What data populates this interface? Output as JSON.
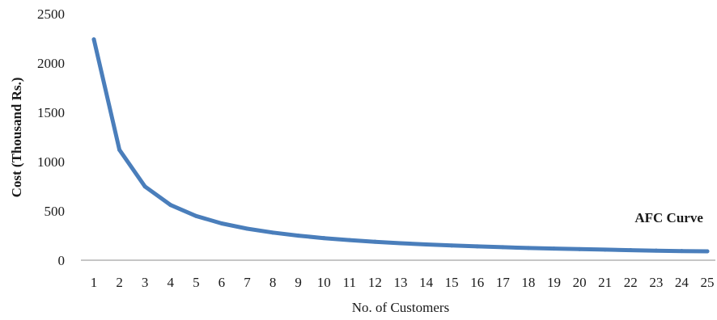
{
  "chart_data": {
    "type": "line",
    "title": "",
    "xlabel": "No. of Customers",
    "ylabel": "Cost (Thousand Rs.)",
    "x": [
      1,
      2,
      3,
      4,
      5,
      6,
      7,
      8,
      9,
      10,
      11,
      12,
      13,
      14,
      15,
      16,
      17,
      18,
      19,
      20,
      21,
      22,
      23,
      24,
      25
    ],
    "series": [
      {
        "name": "",
        "color": "#4a7ebb",
        "values": [
          2240,
          1120,
          747,
          560,
          448,
          373,
          320,
          280,
          249,
          224,
          204,
          187,
          172,
          160,
          149,
          140,
          132,
          124,
          118,
          112,
          107,
          102,
          97,
          93,
          90
        ]
      }
    ],
    "ylim": [
      0,
      2500
    ],
    "yticks": [
      0,
      500,
      1000,
      1500,
      2000,
      2500
    ],
    "grid": false,
    "legend": "none",
    "annotations": [
      {
        "text": "AFC Curve",
        "x": 23.5,
        "y": 400
      }
    ]
  }
}
